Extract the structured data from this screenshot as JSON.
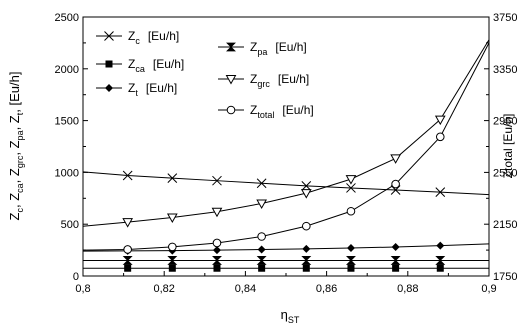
{
  "chart_data": {
    "type": "line",
    "xlabel": "η",
    "xlabel_sub": "ST",
    "ylabel_parts": [
      {
        "main": "Z",
        "sub": "c"
      },
      {
        "main": "Z",
        "sub": "ca"
      },
      {
        "main": "Z",
        "sub": "grc"
      },
      {
        "main": "Z",
        "sub": "pa"
      },
      {
        "main": "Z",
        "sub": "t"
      }
    ],
    "ylabel_unit": "[Eu/h]",
    "y2label": "Ztotal [Eu/h]",
    "xlim": [
      0.8,
      0.9
    ],
    "ylim": [
      0,
      2500
    ],
    "y2lim": [
      1750,
      3750
    ],
    "x_ticks": [
      "0,8",
      "0,82",
      "0,84",
      "0,86",
      "0,88",
      "0,9"
    ],
    "y_ticks": [
      "0",
      "500",
      "1000",
      "1500",
      "2000",
      "2500"
    ],
    "y2_ticks": [
      "1750",
      "2150",
      "2550",
      "2950",
      "3350",
      "3750"
    ],
    "grid": false,
    "legend_position": "top-left",
    "series": [
      {
        "name": "Z",
        "sub": "c",
        "unit": "[Eu/h]",
        "axis": "left",
        "marker": "x",
        "x": [
          0.8,
          0.811,
          0.822,
          0.833,
          0.844,
          0.855,
          0.866,
          0.877,
          0.888,
          0.9
        ],
        "y": [
          1005,
          970,
          945,
          920,
          895,
          870,
          850,
          830,
          810,
          785
        ]
      },
      {
        "name": "Z",
        "sub": "ca",
        "unit": "[Eu/h]",
        "axis": "left",
        "marker": "square",
        "x": [
          0.8,
          0.811,
          0.822,
          0.833,
          0.844,
          0.855,
          0.866,
          0.877,
          0.888,
          0.9
        ],
        "y": [
          75,
          75,
          75,
          75,
          75,
          75,
          75,
          75,
          75,
          75
        ]
      },
      {
        "name": "Z",
        "sub": "t",
        "unit": "[Eu/h]",
        "axis": "left",
        "marker": "diamond",
        "x": [
          0.8,
          0.811,
          0.822,
          0.833,
          0.844,
          0.855,
          0.866,
          0.877,
          0.888,
          0.9
        ],
        "y": [
          240,
          242,
          245,
          250,
          256,
          262,
          270,
          280,
          293,
          310
        ]
      },
      {
        "name": "Z",
        "sub": "pa",
        "unit": "[Eu/h]",
        "axis": "left",
        "marker": "bowtie",
        "x": [
          0.8,
          0.811,
          0.822,
          0.833,
          0.844,
          0.855,
          0.866,
          0.877,
          0.888,
          0.9
        ],
        "y": [
          150,
          150,
          150,
          150,
          150,
          150,
          150,
          150,
          150,
          150
        ]
      },
      {
        "name": "Z",
        "sub": "grc",
        "unit": "[Eu/h]",
        "axis": "left",
        "marker": "triangle-down",
        "x": [
          0.8,
          0.811,
          0.822,
          0.833,
          0.844,
          0.855,
          0.866,
          0.877,
          0.888,
          0.9
        ],
        "y": [
          480,
          520,
          565,
          620,
          700,
          800,
          935,
          1135,
          1510,
          2280
        ]
      },
      {
        "name": "Z",
        "sub": "total",
        "unit": "[Eu/h]",
        "axis": "right",
        "marker": "circle",
        "x": [
          0.8,
          0.811,
          0.822,
          0.833,
          0.844,
          0.855,
          0.866,
          0.877,
          0.888,
          0.9
        ],
        "y": [
          1950,
          1955,
          1975,
          2005,
          2055,
          2135,
          2250,
          2460,
          2825,
          3550
        ]
      }
    ]
  }
}
